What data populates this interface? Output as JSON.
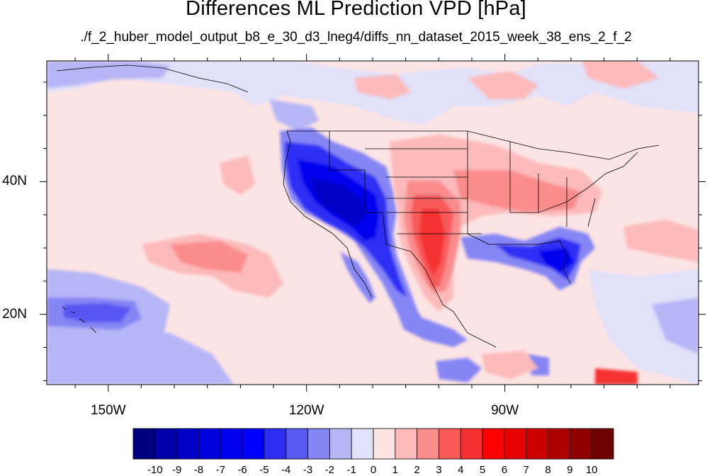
{
  "title": "Differences ML Prediction VPD [hPa]",
  "subtitle": "./f_2_huber_model_output_b8_e_30_d3_lneg4/diffs_nn_dataset_2015_week_38_ens_2_f_2",
  "lon_ticks": [
    {
      "lon": -150,
      "label": "150W"
    },
    {
      "lon": -120,
      "label": "120W"
    },
    {
      "lon": -90,
      "label": "90W"
    }
  ],
  "lat_ticks": [
    {
      "lat": 40,
      "label": "40N"
    },
    {
      "lat": 20,
      "label": "20N"
    }
  ],
  "map_extent": {
    "lon": [
      -159.3,
      -60.7
    ],
    "lat": [
      9.4,
      58.2
    ]
  },
  "colorbar": {
    "labels": [
      "-10",
      "-9",
      "-8",
      "-7",
      "-6",
      "-5",
      "-4",
      "-3",
      "-2",
      "-1",
      "0",
      "1",
      "2",
      "3",
      "4",
      "5",
      "6",
      "7",
      "8",
      "9",
      "10"
    ],
    "colors": [
      "#00007e",
      "#0000a8",
      "#0000c6",
      "#0000dc",
      "#0000ee",
      "#0000fd",
      "#2d2df4",
      "#5757f2",
      "#8585f4",
      "#b6b6f6",
      "#e1e1fa",
      "#fde4e4",
      "#fcbaba",
      "#fa8c8c",
      "#f85a5a",
      "#f43030",
      "#fd0000",
      "#e80000",
      "#cc0000",
      "#ad0000",
      "#8e0000",
      "#700000"
    ]
  }
}
